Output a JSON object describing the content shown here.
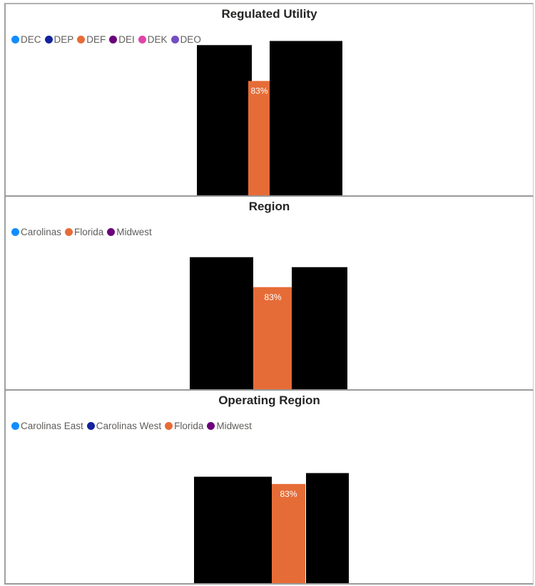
{
  "colors": {
    "orange": "#E66C37",
    "black": "#000000",
    "label": "#ffffff"
  },
  "chart_data": [
    {
      "type": "bar",
      "title": "Regulated Utility",
      "legend": [
        {
          "name": "DEC",
          "color": "#118DFF"
        },
        {
          "name": "DEP",
          "color": "#12239E"
        },
        {
          "name": "DEF",
          "color": "#E66C37"
        },
        {
          "name": "DEI",
          "color": "#6B007B"
        },
        {
          "name": "DEK",
          "color": "#E044A7"
        },
        {
          "name": "DEO",
          "color": "#744EC2"
        }
      ],
      "legend_placement": "top-left",
      "bars": [
        {
          "category": "",
          "value": 1.09,
          "color": "#000000",
          "label": ""
        },
        {
          "category": "DEF",
          "value": 0.83,
          "color": "#E66C37",
          "label": "83%"
        },
        {
          "category": "",
          "value": 1.12,
          "color": "#000000",
          "label": ""
        }
      ],
      "ylim": [
        0,
        1.2
      ]
    },
    {
      "type": "bar",
      "title": "Region",
      "legend": [
        {
          "name": "Carolinas",
          "color": "#118DFF"
        },
        {
          "name": "Florida",
          "color": "#E66C37"
        },
        {
          "name": "Midwest",
          "color": "#6B007B"
        }
      ],
      "legend_placement": "top-left",
      "bars": [
        {
          "category": "",
          "value": 1.07,
          "color": "#000000",
          "label": ""
        },
        {
          "category": "Florida",
          "value": 0.83,
          "color": "#E66C37",
          "label": "83%"
        },
        {
          "category": "",
          "value": 0.99,
          "color": "#000000",
          "label": ""
        }
      ],
      "ylim": [
        0,
        1.2
      ]
    },
    {
      "type": "bar",
      "title": "Operating Region",
      "legend": [
        {
          "name": "Carolinas East",
          "color": "#118DFF"
        },
        {
          "name": "Carolinas West",
          "color": "#12239E"
        },
        {
          "name": "Florida",
          "color": "#E66C37"
        },
        {
          "name": "Midwest",
          "color": "#6B007B"
        }
      ],
      "legend_placement": "top-left",
      "bars": [
        {
          "category": "",
          "value": 0.89,
          "color": "#000000",
          "label": ""
        },
        {
          "category": "Florida",
          "value": 0.83,
          "color": "#E66C37",
          "label": "83%"
        },
        {
          "category": "",
          "value": 0.92,
          "color": "#000000",
          "label": ""
        }
      ],
      "ylim": [
        0,
        1.2
      ]
    }
  ]
}
